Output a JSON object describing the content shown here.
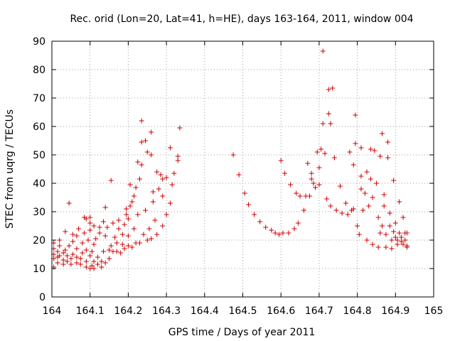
{
  "chart_data": {
    "type": "scatter",
    "title": "Rec. orid (Lon=20, Lat=41, h=HE), days 163-164, 2011, window 004",
    "xlabel": "GPS time / Days of year 2011",
    "ylabel": "STEC from uqrg / TECUs",
    "xlim": [
      164,
      165
    ],
    "ylim": [
      0,
      90
    ],
    "x_ticks": [
      "164",
      "164.1",
      "164.2",
      "164.3",
      "164.4",
      "164.5",
      "164.6",
      "164.7",
      "164.8",
      "164.9",
      "165"
    ],
    "y_ticks": [
      "0",
      "10",
      "20",
      "30",
      "40",
      "50",
      "60",
      "70",
      "80",
      "90"
    ],
    "grid": true,
    "marker": "plus",
    "color": "#cc0000",
    "points": [
      [
        164.005,
        10.5
      ],
      [
        164.005,
        13.5
      ],
      [
        164.005,
        15.0
      ],
      [
        164.005,
        17.0
      ],
      [
        164.005,
        19.0
      ],
      [
        164.015,
        12.0
      ],
      [
        164.015,
        14.0
      ],
      [
        164.015,
        16.0
      ],
      [
        164.02,
        14.5
      ],
      [
        164.02,
        18.0
      ],
      [
        164.02,
        20.0
      ],
      [
        164.03,
        11.5
      ],
      [
        164.03,
        13.0
      ],
      [
        164.03,
        15.5
      ],
      [
        164.035,
        16.5
      ],
      [
        164.035,
        23.0
      ],
      [
        164.04,
        12.5
      ],
      [
        164.04,
        14.5
      ],
      [
        164.045,
        33.0
      ],
      [
        164.045,
        18.0
      ],
      [
        164.05,
        11.5
      ],
      [
        164.05,
        13.5
      ],
      [
        164.055,
        15.0
      ],
      [
        164.055,
        19.5
      ],
      [
        164.055,
        22.0
      ],
      [
        164.065,
        12.0
      ],
      [
        164.065,
        14.0
      ],
      [
        164.065,
        17.0
      ],
      [
        164.065,
        21.5
      ],
      [
        164.07,
        24.0
      ],
      [
        164.075,
        11.5
      ],
      [
        164.075,
        13.5
      ],
      [
        164.08,
        15.5
      ],
      [
        164.08,
        19.0
      ],
      [
        164.085,
        22.5
      ],
      [
        164.085,
        28.0
      ],
      [
        164.09,
        10.5
      ],
      [
        164.09,
        12.5
      ],
      [
        164.09,
        16.5
      ],
      [
        164.09,
        27.5
      ],
      [
        164.095,
        20.0
      ],
      [
        164.1,
        10.0
      ],
      [
        164.1,
        14.5
      ],
      [
        164.1,
        23.5
      ],
      [
        164.1,
        26.0
      ],
      [
        164.1,
        28.0
      ],
      [
        164.105,
        11.0
      ],
      [
        164.105,
        16.0
      ],
      [
        164.11,
        10.0
      ],
      [
        164.11,
        12.5
      ],
      [
        164.11,
        18.5
      ],
      [
        164.11,
        25.0
      ],
      [
        164.115,
        20.5
      ],
      [
        164.12,
        11.5
      ],
      [
        164.12,
        14.0
      ],
      [
        164.125,
        22.5
      ],
      [
        164.125,
        24.5
      ],
      [
        164.13,
        10.5
      ],
      [
        164.13,
        12.5
      ],
      [
        164.135,
        16.0
      ],
      [
        164.135,
        26.5
      ],
      [
        164.14,
        31.5
      ],
      [
        164.14,
        12.0
      ],
      [
        164.14,
        21.5
      ],
      [
        164.145,
        24.5
      ],
      [
        164.15,
        13.5
      ],
      [
        164.15,
        16.5
      ],
      [
        164.155,
        41.0
      ],
      [
        164.155,
        18.0
      ],
      [
        164.16,
        26.0
      ],
      [
        164.16,
        16.0
      ],
      [
        164.165,
        21.0
      ],
      [
        164.17,
        16.0
      ],
      [
        164.17,
        19.0
      ],
      [
        164.175,
        27.0
      ],
      [
        164.175,
        24.0
      ],
      [
        164.18,
        15.5
      ],
      [
        164.185,
        18.5
      ],
      [
        164.185,
        22.0
      ],
      [
        164.19,
        17.0
      ],
      [
        164.19,
        25.5
      ],
      [
        164.195,
        29.0
      ],
      [
        164.195,
        31.0
      ],
      [
        164.2,
        18.0
      ],
      [
        164.2,
        21.5
      ],
      [
        164.2,
        27.5
      ],
      [
        164.205,
        32.0
      ],
      [
        164.205,
        39.5
      ],
      [
        164.21,
        17.5
      ],
      [
        164.21,
        33.5
      ],
      [
        164.215,
        24.0
      ],
      [
        164.215,
        35.5
      ],
      [
        164.22,
        19.0
      ],
      [
        164.22,
        38.5
      ],
      [
        164.225,
        47.5
      ],
      [
        164.225,
        29.0
      ],
      [
        164.23,
        19.0
      ],
      [
        164.23,
        41.5
      ],
      [
        164.235,
        54.5
      ],
      [
        164.235,
        62.0
      ],
      [
        164.235,
        46.5
      ],
      [
        164.24,
        22.0
      ],
      [
        164.245,
        55.0
      ],
      [
        164.245,
        30.5
      ],
      [
        164.25,
        20.0
      ],
      [
        164.25,
        51.0
      ],
      [
        164.255,
        24.0
      ],
      [
        164.26,
        20.5
      ],
      [
        164.26,
        50.0
      ],
      [
        164.26,
        58.0
      ],
      [
        164.265,
        33.5
      ],
      [
        164.265,
        37.0
      ],
      [
        164.27,
        27.0
      ],
      [
        164.275,
        22.0
      ],
      [
        164.275,
        44.0
      ],
      [
        164.28,
        38.0
      ],
      [
        164.285,
        43.0
      ],
      [
        164.29,
        25.0
      ],
      [
        164.29,
        35.5
      ],
      [
        164.29,
        41.5
      ],
      [
        164.3,
        42.0
      ],
      [
        164.3,
        29.0
      ],
      [
        164.31,
        52.5
      ],
      [
        164.31,
        33.0
      ],
      [
        164.315,
        39.5
      ],
      [
        164.32,
        43.5
      ],
      [
        164.33,
        48.0
      ],
      [
        164.33,
        49.5
      ],
      [
        164.335,
        59.5
      ],
      [
        164.475,
        50.0
      ],
      [
        164.49,
        43.0
      ],
      [
        164.505,
        36.5
      ],
      [
        164.515,
        32.5
      ],
      [
        164.53,
        29.0
      ],
      [
        164.545,
        26.5
      ],
      [
        164.56,
        24.5
      ],
      [
        164.575,
        23.5
      ],
      [
        164.585,
        22.5
      ],
      [
        164.595,
        22.0
      ],
      [
        164.6,
        48.0
      ],
      [
        164.605,
        22.5
      ],
      [
        164.61,
        43.5
      ],
      [
        164.62,
        22.5
      ],
      [
        164.625,
        39.5
      ],
      [
        164.635,
        24.0
      ],
      [
        164.64,
        36.5
      ],
      [
        164.645,
        26.0
      ],
      [
        164.65,
        35.5
      ],
      [
        164.66,
        30.5
      ],
      [
        164.665,
        35.5
      ],
      [
        164.67,
        47.0
      ],
      [
        164.675,
        35.5
      ],
      [
        164.68,
        43.5
      ],
      [
        164.68,
        41.5
      ],
      [
        164.685,
        40.0
      ],
      [
        164.69,
        38.5
      ],
      [
        164.695,
        51.0
      ],
      [
        164.7,
        45.5
      ],
      [
        164.7,
        39.5
      ],
      [
        164.705,
        52.0
      ],
      [
        164.71,
        86.5
      ],
      [
        164.71,
        61.0
      ],
      [
        164.715,
        50.5
      ],
      [
        164.72,
        34.5
      ],
      [
        164.725,
        73.0
      ],
      [
        164.725,
        64.5
      ],
      [
        164.73,
        61.0
      ],
      [
        164.73,
        32.0
      ],
      [
        164.735,
        73.5
      ],
      [
        164.74,
        49.0
      ],
      [
        164.745,
        30.5
      ],
      [
        164.755,
        39.0
      ],
      [
        164.76,
        29.5
      ],
      [
        164.77,
        33.0
      ],
      [
        164.775,
        29.0
      ],
      [
        164.78,
        51.0
      ],
      [
        164.785,
        30.5
      ],
      [
        164.79,
        46.5
      ],
      [
        164.79,
        31.0
      ],
      [
        164.795,
        64.0
      ],
      [
        164.795,
        54.0
      ],
      [
        164.8,
        25.0
      ],
      [
        164.805,
        22.0
      ],
      [
        164.81,
        52.5
      ],
      [
        164.81,
        38.0
      ],
      [
        164.81,
        42.5
      ],
      [
        164.815,
        30.5
      ],
      [
        164.82,
        36.5
      ],
      [
        164.825,
        44.0
      ],
      [
        164.825,
        20.0
      ],
      [
        164.83,
        32.0
      ],
      [
        164.835,
        41.5
      ],
      [
        164.835,
        52.0
      ],
      [
        164.84,
        18.5
      ],
      [
        164.84,
        35.0
      ],
      [
        164.845,
        51.5
      ],
      [
        164.85,
        40.0
      ],
      [
        164.855,
        17.5
      ],
      [
        164.855,
        28.0
      ],
      [
        164.86,
        49.5
      ],
      [
        164.86,
        22.5
      ],
      [
        164.865,
        57.5
      ],
      [
        164.865,
        25.0
      ],
      [
        164.87,
        36.0
      ],
      [
        164.87,
        32.0
      ],
      [
        164.875,
        17.5
      ],
      [
        164.875,
        22.0
      ],
      [
        164.88,
        49.0
      ],
      [
        164.88,
        54.5
      ],
      [
        164.885,
        29.5
      ],
      [
        164.885,
        25.0
      ],
      [
        164.89,
        20.0
      ],
      [
        164.89,
        17.0
      ],
      [
        164.895,
        41.0
      ],
      [
        164.895,
        23.0
      ],
      [
        164.9,
        21.0
      ],
      [
        164.9,
        26.0
      ],
      [
        164.905,
        20.0
      ],
      [
        164.905,
        18.5
      ],
      [
        164.91,
        33.5
      ],
      [
        164.91,
        22.5
      ],
      [
        164.915,
        21.0
      ],
      [
        164.915,
        19.5
      ],
      [
        164.92,
        28.0
      ],
      [
        164.92,
        18.5
      ],
      [
        164.925,
        22.5
      ],
      [
        164.925,
        20.0
      ],
      [
        164.93,
        17.5
      ],
      [
        164.93,
        18.0
      ],
      [
        164.93,
        22.5
      ]
    ]
  }
}
